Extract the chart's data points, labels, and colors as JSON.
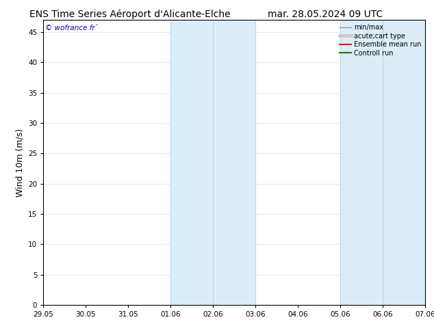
{
  "title_left": "ENS Time Series Aéroport d'Alicante-Elche",
  "title_right": "mar. 28.05.2024 09 UTC",
  "ylabel": "Wind 10m (m/s)",
  "watermark": "© wofrance.fr`",
  "ylim": [
    0,
    47
  ],
  "yticks": [
    0,
    5,
    10,
    15,
    20,
    25,
    30,
    35,
    40,
    45
  ],
  "xtick_labels": [
    "29.05",
    "30.05",
    "31.05",
    "01.06",
    "02.06",
    "03.06",
    "04.06",
    "05.06",
    "06.06",
    "07.06"
  ],
  "shade_regions": [
    {
      "xmin": 3,
      "xmax": 4,
      "color": "#ddedf8"
    },
    {
      "xmin": 4,
      "xmax": 5,
      "color": "#ddedf8"
    },
    {
      "xmin": 7,
      "xmax": 8,
      "color": "#ddedf8"
    },
    {
      "xmin": 8,
      "xmax": 9,
      "color": "#ddedf8"
    }
  ],
  "shade_vlines": [
    3,
    4,
    5,
    7,
    8,
    9
  ],
  "legend_entries": [
    {
      "label": "min/max",
      "color": "#999999",
      "lw": 1.0,
      "ls": "-"
    },
    {
      "label": "acute;cart type",
      "color": "#cccccc",
      "lw": 3.5,
      "ls": "-"
    },
    {
      "label": "Ensemble mean run",
      "color": "red",
      "lw": 1.5,
      "ls": "-"
    },
    {
      "label": "Controll run",
      "color": "green",
      "lw": 1.5,
      "ls": "-"
    }
  ],
  "bg_color": "#ffffff",
  "plot_bg_color": "#ffffff",
  "title_fontsize": 10,
  "tick_fontsize": 7.5,
  "ylabel_fontsize": 9,
  "watermark_color": "#0000cc",
  "watermark_fontsize": 7.5,
  "shade_line_color": "#b8d4e8",
  "shade_line_lw": 0.8
}
